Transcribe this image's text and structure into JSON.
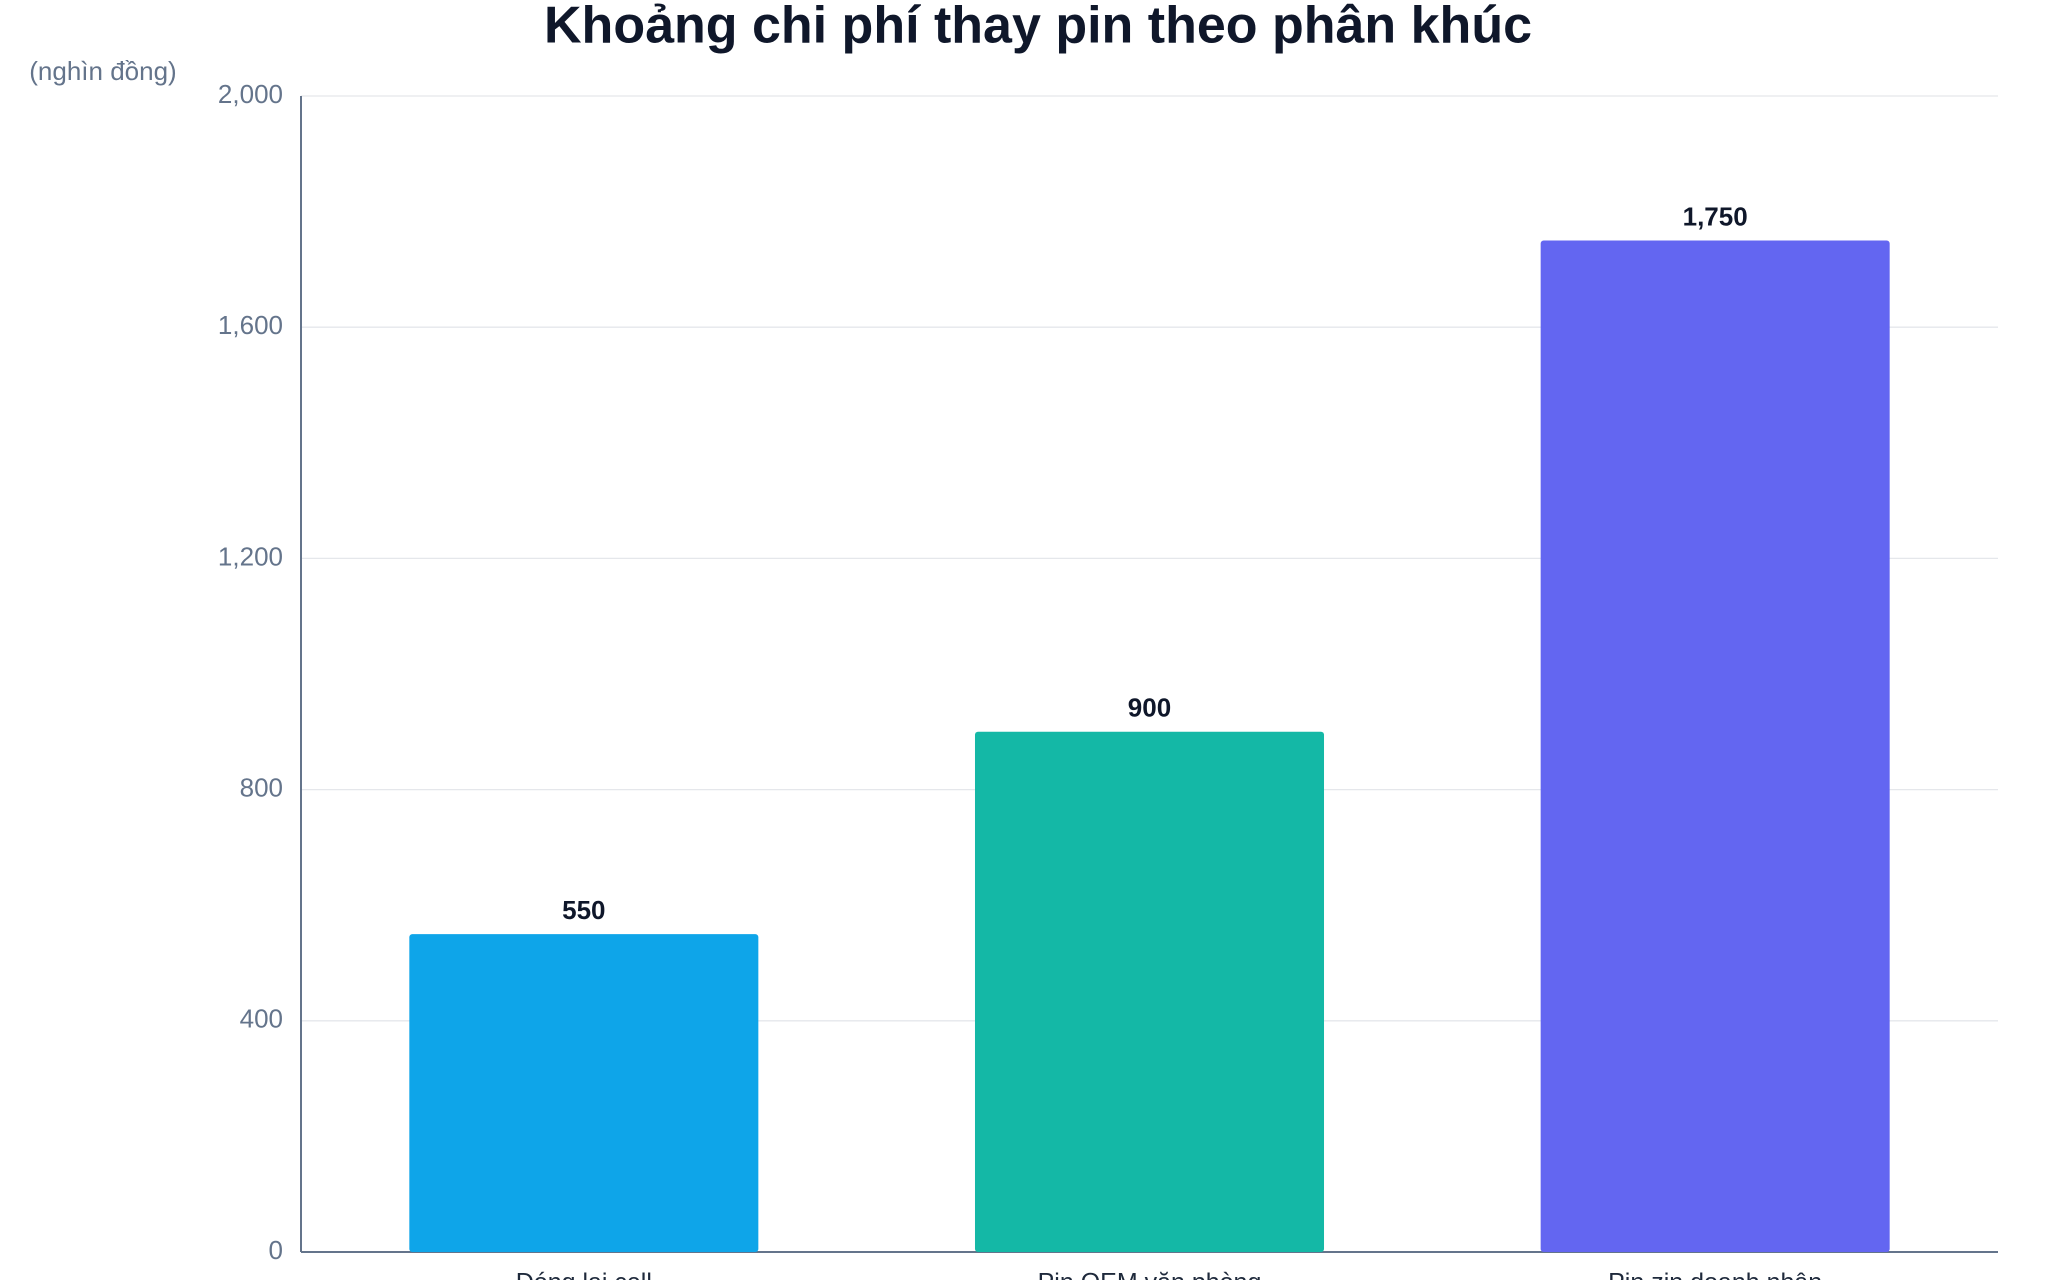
{
  "chart_data": {
    "type": "bar",
    "title": "Khoảng chi phí thay pin theo phân khúc",
    "y_axis_label": "(nghìn đồng)",
    "categories": [
      "Đóng lại cell",
      "Pin OEM văn phòng",
      "Pin zin doanh nhân"
    ],
    "values": [
      550,
      900,
      1750
    ],
    "value_labels": [
      "550",
      "900",
      "1,750"
    ],
    "colors": [
      "#0ea5e9",
      "#14b8a6",
      "#6366f1"
    ],
    "ylim": [
      0,
      2000
    ],
    "yticks": [
      0,
      400,
      800,
      {
        "value": 1200,
        "label": "1,200"
      },
      {
        "value": 1600,
        "label": "1,600"
      },
      {
        "value": 2000,
        "label": "2,000"
      }
    ],
    "grid": true
  }
}
